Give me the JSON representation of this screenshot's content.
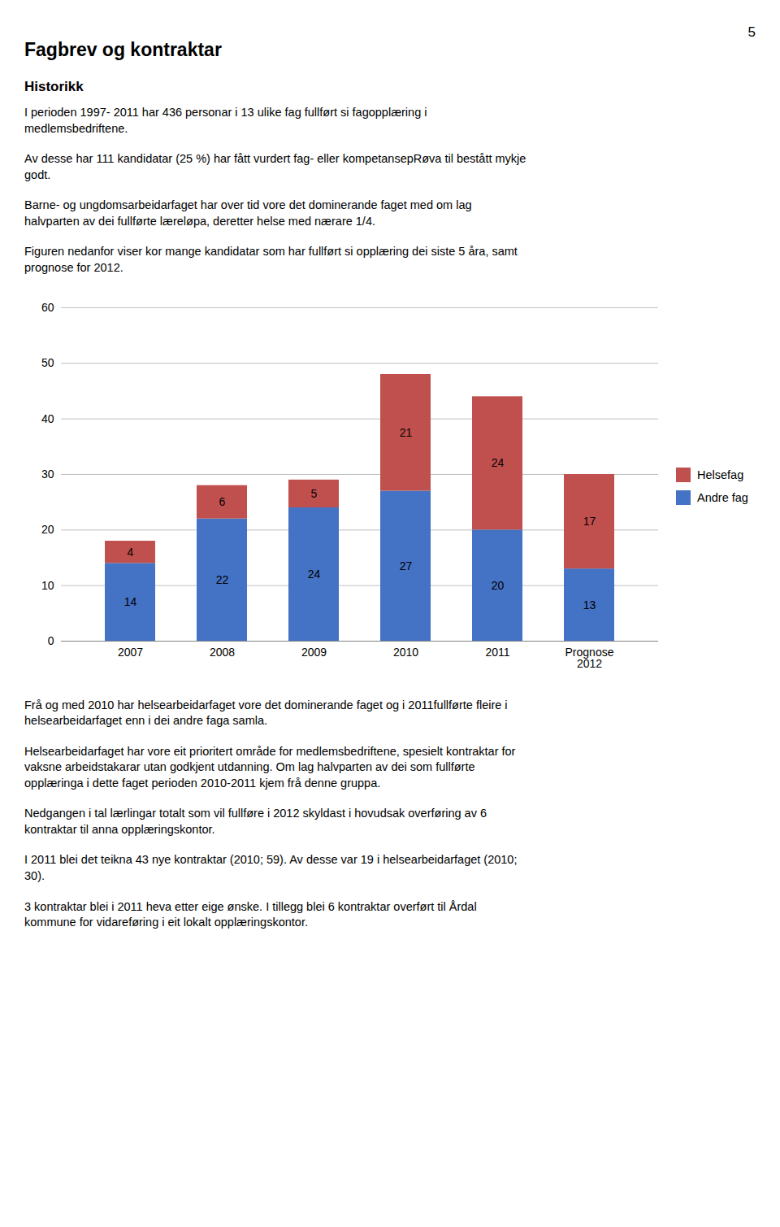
{
  "chart_data": {
    "type": "bar",
    "title": "Fagbrev og kontraktar",
    "subtitle": "Historikk",
    "page_number": "5",
    "annotations": [
      "I perioden 1997- 2011 har 436 personar i 13 ulike fag fullført si fagopplæring i\nmedlemsbedriftene.",
      "Av desse har 111 kandidatar (25 %) har fått vurdert fag- eller kompetansepRøva til bestått mykje\ngodt.",
      "Barne- og ungdomsarbeidarfaget har over tid vore det dominerande faget med om lag\nhalvparten av dei fullførte læreløpa, deretter helse med nærare 1/4.",
      "Figuren nedanfor viser kor mange kandidatar som har fullført si opplæring dei siste 5 åra, samt\nprognose for 2012.",
      "Frå og med 2010 har helsearbeidarfaget vore det dominerande faget og i 2011fullførte fleire i\nhelsearbeidarfaget enn i dei andre faga samla.",
      "Helsearbeidarfaget har vore eit prioritert område for medlemsbedriftene, spesielt kontraktar for\nvaksne arbeidstakarar utan godkjent utdanning.  Om lag halvparten av dei som fullførte\nopplæringa i dette faget perioden 2010-2011 kjem frå denne gruppa.",
      "Nedgangen i tal lærlingar totalt som vil fullføre i 2012 skyldast i hovudsak overføring av 6\nkontraktar til anna opplæringskontor.",
      "I 2011 blei det teikna 43 nye kontraktar (2010; 59).  Av desse var 19 i helsearbeidarfaget (2010;\n30).",
      "3 kontraktar blei i 2011 heva etter eige ønske. I tillegg blei 6 kontraktar overført til Årdal\nkommune for vidareføring i eit lokalt opplæringskontor."
    ],
    "categories": [
      "2007",
      "2008",
      "2009",
      "2010",
      "2011",
      "Prognose\n2012"
    ],
    "series": [
      {
        "name": "Andre fag",
        "color": "#4472C4",
        "values": [
          14,
          22,
          24,
          27,
          20,
          13
        ]
      },
      {
        "name": "Helsefag",
        "color": "#C0504D",
        "values": [
          4,
          6,
          5,
          21,
          24,
          17
        ]
      }
    ],
    "stacked": true,
    "ylim": [
      0,
      60
    ],
    "yticks": [
      0,
      10,
      20,
      30,
      40,
      50,
      60
    ],
    "grid": true,
    "legend": "right",
    "data_labels": true
  }
}
